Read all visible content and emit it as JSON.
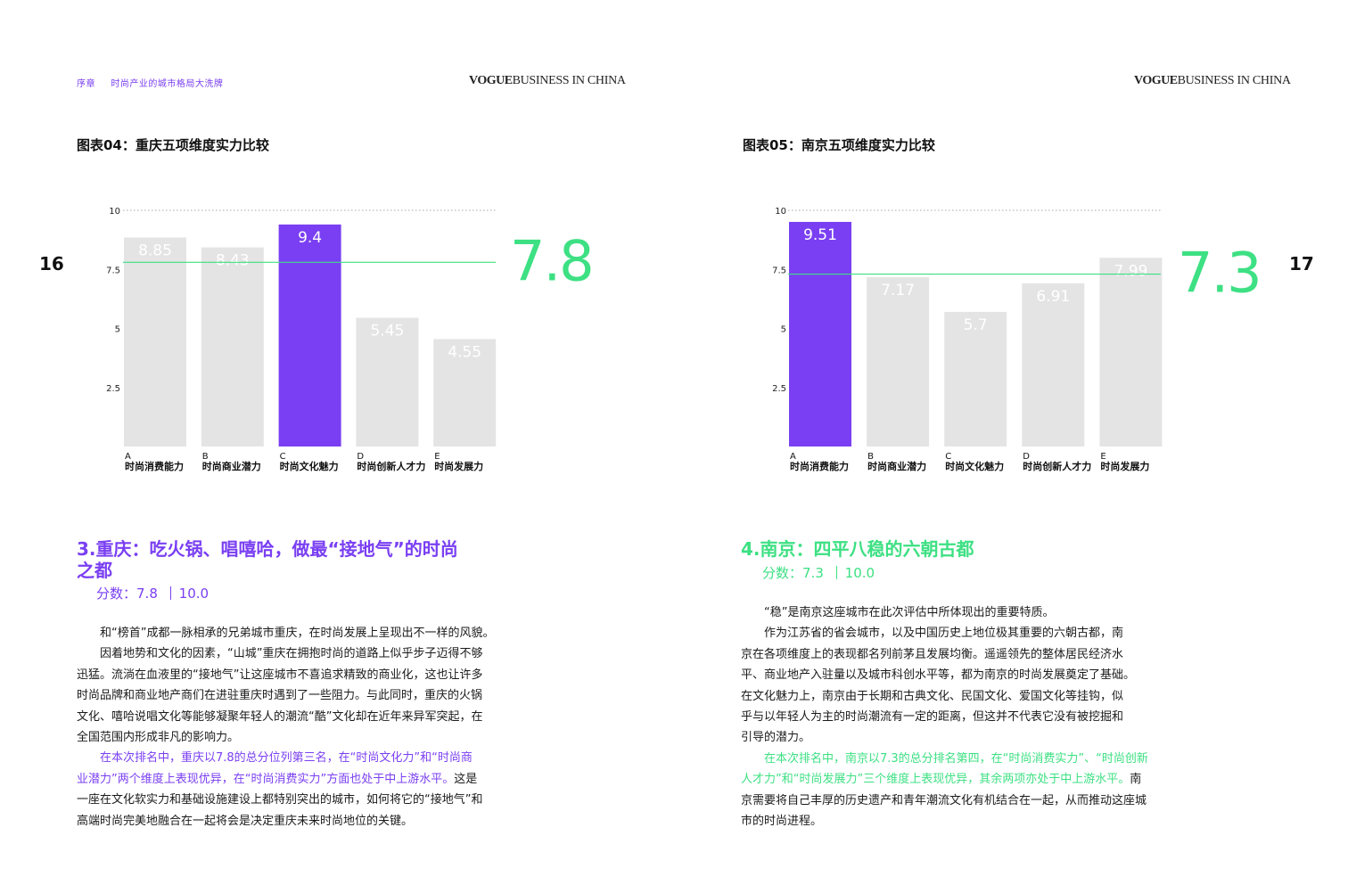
{
  "header": {
    "breadcrumb_section": "序章",
    "breadcrumb_title": "时尚产业的城市格局大洗牌",
    "brand_vogue": "VOGUE",
    "brand_rest": "BUSINESS IN CHINA"
  },
  "page_numbers": {
    "left": "16",
    "right": "17"
  },
  "colors": {
    "purple": "#7a3ff2",
    "green": "#3de083",
    "bar_gray": "#e3e4e3",
    "text": "#1a1a1a"
  },
  "chart_data": [
    {
      "type": "bar",
      "title": "图表04：重庆五项维度实力比较",
      "categories": [
        {
          "letter": "A",
          "name": "时尚消费能力"
        },
        {
          "letter": "B",
          "name": "时尚商业潜力"
        },
        {
          "letter": "C",
          "name": "时尚文化魅力"
        },
        {
          "letter": "D",
          "name": "时尚创新人才力"
        },
        {
          "letter": "E",
          "name": "时尚发展力"
        }
      ],
      "values": [
        8.85,
        8.43,
        9.4,
        5.45,
        4.55
      ],
      "value_labels": [
        "8.85",
        "8.43",
        "9.4",
        "5.45",
        "4.55"
      ],
      "highlight_index": 2,
      "average": 7.8,
      "average_label": "7.8",
      "yticks": [
        2.5,
        5,
        7.5,
        10
      ],
      "ytick_labels": [
        "2.5",
        "5",
        "7.5",
        "10"
      ],
      "ylim": [
        0,
        10
      ],
      "grid": "top dotted line at 10"
    },
    {
      "type": "bar",
      "title": "图表05：南京五项维度实力比较",
      "categories": [
        {
          "letter": "A",
          "name": "时尚消费能力"
        },
        {
          "letter": "B",
          "name": "时尚商业潜力"
        },
        {
          "letter": "C",
          "name": "时尚文化魅力"
        },
        {
          "letter": "D",
          "name": "时尚创新人才力"
        },
        {
          "letter": "E",
          "name": "时尚发展力"
        }
      ],
      "values": [
        9.51,
        7.17,
        5.7,
        6.91,
        7.99
      ],
      "value_labels": [
        "9.51",
        "7.17",
        "5.7",
        "6.91",
        "7.99"
      ],
      "highlight_index": 0,
      "average": 7.3,
      "average_label": "7.3",
      "yticks": [
        2.5,
        5,
        7.5,
        10
      ],
      "ytick_labels": [
        "2.5",
        "5",
        "7.5",
        "10"
      ],
      "ylim": [
        0,
        10
      ],
      "grid": "top dotted line at 10"
    }
  ],
  "left": {
    "heading_line1": "3.重庆：吃火锅、唱嘻哈，做最“接地气”的时尚",
    "heading_line2": "之都",
    "score_label": "分数：",
    "score_value": "7.8",
    "score_max": "10.0",
    "body": [
      {
        "style": "indent",
        "text": "和“榜首”成都一脉相承的兄弟城市重庆，在时尚发展上呈现出不一样的风貌。"
      },
      {
        "style": "indent",
        "text": "因着地势和文化的因素，“山城”重庆在拥抱时尚的道路上似乎步子迈得不够"
      },
      {
        "style": "plain",
        "text": "迅猛。流淌在血液里的“接地气”让这座城市不喜追求精致的商业化，这也让许多"
      },
      {
        "style": "plain",
        "text": "时尚品牌和商业地产商们在进驻重庆时遇到了一些阻力。与此同时，重庆的火锅"
      },
      {
        "style": "plain",
        "text": "文化、嘻哈说唱文化等能够凝聚年轻人的潮流“酷”文化却在近年来异军突起，在"
      },
      {
        "style": "plain",
        "text": "全国范围内形成非凡的影响力。"
      }
    ],
    "highlight_lines": [
      {
        "style": "indent",
        "text": "在本次排名中，重庆以7.8的总分位列第三名，在“时尚文化力”和“时尚商"
      },
      {
        "style": "plain",
        "text": "业潜力”两个维度上表现优异，在“时尚消费实力”方面也处于中上游水平。"
      }
    ],
    "highlight_tail": "这是",
    "closing": [
      {
        "style": "plain",
        "text": "一座在文化软实力和基础设施建设上都特别突出的城市，如何将它的“接地气”和"
      },
      {
        "style": "plain",
        "text": "高端时尚完美地融合在一起将会是决定重庆未来时尚地位的关键。"
      }
    ]
  },
  "right": {
    "heading_line1": "4.南京：四平八稳的六朝古都",
    "score_label": "分数：",
    "score_value": "7.3",
    "score_max": "10.0",
    "body": [
      {
        "style": "indent",
        "text": "“稳”是南京这座城市在此次评估中所体现出的重要特质。"
      },
      {
        "style": "indent",
        "text": "作为江苏省的省会城市，以及中国历史上地位极其重要的六朝古都，南"
      },
      {
        "style": "plain",
        "text": "京在各项维度上的表现都名列前茅且发展均衡。遥遥领先的整体居民经济水"
      },
      {
        "style": "plain",
        "text": "平、商业地产入驻量以及城市科创水平等，都为南京的时尚发展奠定了基础。"
      },
      {
        "style": "plain",
        "text": "在文化魅力上，南京由于长期和古典文化、民国文化、爱国文化等挂钩，似"
      },
      {
        "style": "plain",
        "text": "乎与以年轻人为主的时尚潮流有一定的距离，但这并不代表它没有被挖掘和"
      },
      {
        "style": "plain",
        "text": "引导的潜力。"
      }
    ],
    "highlight_lines": [
      {
        "style": "indent",
        "text": "在本次排名中，南京以7.3的总分排名第四，在“时尚消费实力”、“时尚创新"
      },
      {
        "style": "plain",
        "text": "人才力”和“时尚发展力”三个维度上表现优异，其余两项亦处于中上游水平。"
      }
    ],
    "highlight_tail": "南",
    "closing": [
      {
        "style": "plain",
        "text": "京需要将自己丰厚的历史遗产和青年潮流文化有机结合在一起，从而推动这座城"
      },
      {
        "style": "plain",
        "text": "市的时尚进程。"
      }
    ]
  }
}
